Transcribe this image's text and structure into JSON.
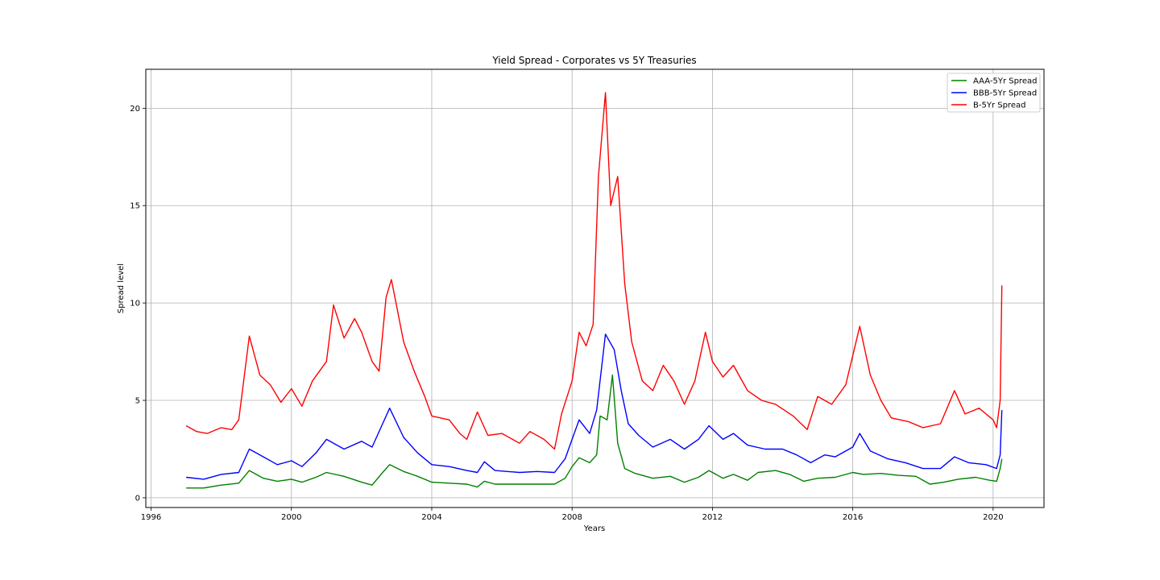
{
  "chart_data": {
    "type": "line",
    "title": "Yield Spread - Corporates vs 5Y Treasuries",
    "xlabel": "Years",
    "ylabel": "Spread level",
    "xlim": [
      1995.85,
      2021.45
    ],
    "ylim": [
      -0.5,
      22
    ],
    "x_ticks": [
      1996,
      2000,
      2004,
      2008,
      2012,
      2016,
      2020
    ],
    "y_ticks": [
      0,
      5,
      10,
      15,
      20
    ],
    "grid": true,
    "legend_position": "top-right",
    "series": [
      {
        "name": "AAA-5Yr Spread",
        "color": "#008000",
        "points": [
          [
            1997.0,
            0.5
          ],
          [
            1997.5,
            0.5
          ],
          [
            1998.0,
            0.65
          ],
          [
            1998.5,
            0.75
          ],
          [
            1998.8,
            1.4
          ],
          [
            1999.2,
            1.0
          ],
          [
            1999.6,
            0.85
          ],
          [
            2000.0,
            0.95
          ],
          [
            2000.3,
            0.8
          ],
          [
            2000.7,
            1.05
          ],
          [
            2001.0,
            1.3
          ],
          [
            2001.5,
            1.1
          ],
          [
            2002.0,
            0.8
          ],
          [
            2002.3,
            0.65
          ],
          [
            2002.6,
            1.3
          ],
          [
            2002.8,
            1.7
          ],
          [
            2003.2,
            1.35
          ],
          [
            2003.6,
            1.1
          ],
          [
            2004.0,
            0.8
          ],
          [
            2004.5,
            0.75
          ],
          [
            2005.0,
            0.7
          ],
          [
            2005.3,
            0.55
          ],
          [
            2005.5,
            0.85
          ],
          [
            2005.8,
            0.7
          ],
          [
            2006.5,
            0.7
          ],
          [
            2007.0,
            0.7
          ],
          [
            2007.5,
            0.7
          ],
          [
            2007.8,
            1.0
          ],
          [
            2008.0,
            1.6
          ],
          [
            2008.2,
            2.05
          ],
          [
            2008.5,
            1.8
          ],
          [
            2008.7,
            2.2
          ],
          [
            2008.8,
            4.2
          ],
          [
            2009.0,
            4.0
          ],
          [
            2009.15,
            6.3
          ],
          [
            2009.3,
            2.8
          ],
          [
            2009.5,
            1.5
          ],
          [
            2009.8,
            1.25
          ],
          [
            2010.3,
            1.0
          ],
          [
            2010.8,
            1.1
          ],
          [
            2011.2,
            0.8
          ],
          [
            2011.6,
            1.05
          ],
          [
            2011.9,
            1.4
          ],
          [
            2012.3,
            1.0
          ],
          [
            2012.6,
            1.2
          ],
          [
            2013.0,
            0.9
          ],
          [
            2013.3,
            1.3
          ],
          [
            2013.8,
            1.4
          ],
          [
            2014.2,
            1.2
          ],
          [
            2014.6,
            0.85
          ],
          [
            2015.0,
            1.0
          ],
          [
            2015.5,
            1.05
          ],
          [
            2016.0,
            1.3
          ],
          [
            2016.3,
            1.2
          ],
          [
            2016.8,
            1.25
          ],
          [
            2017.3,
            1.15
          ],
          [
            2017.8,
            1.1
          ],
          [
            2018.2,
            0.7
          ],
          [
            2018.6,
            0.8
          ],
          [
            2019.0,
            0.95
          ],
          [
            2019.5,
            1.05
          ],
          [
            2019.9,
            0.9
          ],
          [
            2020.1,
            0.85
          ],
          [
            2020.2,
            1.5
          ],
          [
            2020.25,
            2.0
          ]
        ]
      },
      {
        "name": "BBB-5Yr Spread",
        "color": "#0000ff",
        "points": [
          [
            1997.0,
            1.05
          ],
          [
            1997.5,
            0.95
          ],
          [
            1998.0,
            1.2
          ],
          [
            1998.5,
            1.3
          ],
          [
            1998.8,
            2.5
          ],
          [
            1999.2,
            2.1
          ],
          [
            1999.6,
            1.7
          ],
          [
            2000.0,
            1.9
          ],
          [
            2000.3,
            1.6
          ],
          [
            2000.7,
            2.3
          ],
          [
            2001.0,
            3.0
          ],
          [
            2001.5,
            2.5
          ],
          [
            2002.0,
            2.9
          ],
          [
            2002.3,
            2.6
          ],
          [
            2002.6,
            3.8
          ],
          [
            2002.8,
            4.6
          ],
          [
            2003.2,
            3.1
          ],
          [
            2003.6,
            2.3
          ],
          [
            2004.0,
            1.7
          ],
          [
            2004.5,
            1.6
          ],
          [
            2005.0,
            1.4
          ],
          [
            2005.3,
            1.3
          ],
          [
            2005.5,
            1.85
          ],
          [
            2005.8,
            1.4
          ],
          [
            2006.5,
            1.3
          ],
          [
            2007.0,
            1.35
          ],
          [
            2007.5,
            1.3
          ],
          [
            2007.8,
            2.0
          ],
          [
            2008.0,
            3.0
          ],
          [
            2008.2,
            4.0
          ],
          [
            2008.5,
            3.3
          ],
          [
            2008.7,
            4.5
          ],
          [
            2008.95,
            8.4
          ],
          [
            2009.2,
            7.6
          ],
          [
            2009.4,
            5.5
          ],
          [
            2009.6,
            3.8
          ],
          [
            2009.9,
            3.2
          ],
          [
            2010.3,
            2.6
          ],
          [
            2010.8,
            3.0
          ],
          [
            2011.2,
            2.5
          ],
          [
            2011.6,
            3.0
          ],
          [
            2011.9,
            3.7
          ],
          [
            2012.3,
            3.0
          ],
          [
            2012.6,
            3.3
          ],
          [
            2013.0,
            2.7
          ],
          [
            2013.5,
            2.5
          ],
          [
            2014.0,
            2.5
          ],
          [
            2014.4,
            2.2
          ],
          [
            2014.8,
            1.8
          ],
          [
            2015.2,
            2.2
          ],
          [
            2015.5,
            2.1
          ],
          [
            2016.0,
            2.6
          ],
          [
            2016.2,
            3.3
          ],
          [
            2016.5,
            2.4
          ],
          [
            2017.0,
            2.0
          ],
          [
            2017.5,
            1.8
          ],
          [
            2018.0,
            1.5
          ],
          [
            2018.5,
            1.5
          ],
          [
            2018.9,
            2.1
          ],
          [
            2019.3,
            1.8
          ],
          [
            2019.8,
            1.7
          ],
          [
            2020.1,
            1.5
          ],
          [
            2020.2,
            2.2
          ],
          [
            2020.25,
            4.5
          ]
        ]
      },
      {
        "name": "B-5Yr Spread",
        "color": "#ff0000",
        "points": [
          [
            1997.0,
            3.7
          ],
          [
            1997.3,
            3.4
          ],
          [
            1997.6,
            3.3
          ],
          [
            1998.0,
            3.6
          ],
          [
            1998.3,
            3.5
          ],
          [
            1998.5,
            4.0
          ],
          [
            1998.8,
            8.3
          ],
          [
            1999.1,
            6.3
          ],
          [
            1999.4,
            5.8
          ],
          [
            1999.7,
            4.9
          ],
          [
            2000.0,
            5.6
          ],
          [
            2000.3,
            4.7
          ],
          [
            2000.6,
            6.0
          ],
          [
            2001.0,
            7.0
          ],
          [
            2001.2,
            9.9
          ],
          [
            2001.5,
            8.2
          ],
          [
            2001.8,
            9.2
          ],
          [
            2002.0,
            8.5
          ],
          [
            2002.3,
            7.0
          ],
          [
            2002.5,
            6.5
          ],
          [
            2002.7,
            10.3
          ],
          [
            2002.85,
            11.2
          ],
          [
            2003.2,
            8.0
          ],
          [
            2003.5,
            6.5
          ],
          [
            2003.8,
            5.2
          ],
          [
            2004.0,
            4.2
          ],
          [
            2004.5,
            4.0
          ],
          [
            2004.8,
            3.3
          ],
          [
            2005.0,
            3.0
          ],
          [
            2005.3,
            4.4
          ],
          [
            2005.6,
            3.2
          ],
          [
            2006.0,
            3.3
          ],
          [
            2006.5,
            2.8
          ],
          [
            2006.8,
            3.4
          ],
          [
            2007.2,
            3.0
          ],
          [
            2007.5,
            2.5
          ],
          [
            2007.7,
            4.3
          ],
          [
            2008.0,
            6.0
          ],
          [
            2008.2,
            8.5
          ],
          [
            2008.4,
            7.8
          ],
          [
            2008.6,
            8.9
          ],
          [
            2008.75,
            16.5
          ],
          [
            2008.95,
            20.8
          ],
          [
            2009.1,
            15.0
          ],
          [
            2009.3,
            16.5
          ],
          [
            2009.5,
            11.0
          ],
          [
            2009.7,
            8.0
          ],
          [
            2010.0,
            6.0
          ],
          [
            2010.3,
            5.5
          ],
          [
            2010.6,
            6.8
          ],
          [
            2010.9,
            6.0
          ],
          [
            2011.2,
            4.8
          ],
          [
            2011.5,
            6.0
          ],
          [
            2011.8,
            8.5
          ],
          [
            2012.0,
            7.0
          ],
          [
            2012.3,
            6.2
          ],
          [
            2012.6,
            6.8
          ],
          [
            2013.0,
            5.5
          ],
          [
            2013.4,
            5.0
          ],
          [
            2013.8,
            4.8
          ],
          [
            2014.3,
            4.2
          ],
          [
            2014.7,
            3.5
          ],
          [
            2015.0,
            5.2
          ],
          [
            2015.4,
            4.8
          ],
          [
            2015.8,
            5.8
          ],
          [
            2016.2,
            8.8
          ],
          [
            2016.5,
            6.3
          ],
          [
            2016.8,
            5.0
          ],
          [
            2017.1,
            4.1
          ],
          [
            2017.6,
            3.9
          ],
          [
            2018.0,
            3.6
          ],
          [
            2018.5,
            3.8
          ],
          [
            2018.9,
            5.5
          ],
          [
            2019.2,
            4.3
          ],
          [
            2019.6,
            4.6
          ],
          [
            2020.0,
            4.0
          ],
          [
            2020.1,
            3.6
          ],
          [
            2020.2,
            5.0
          ],
          [
            2020.25,
            10.9
          ]
        ]
      }
    ]
  }
}
